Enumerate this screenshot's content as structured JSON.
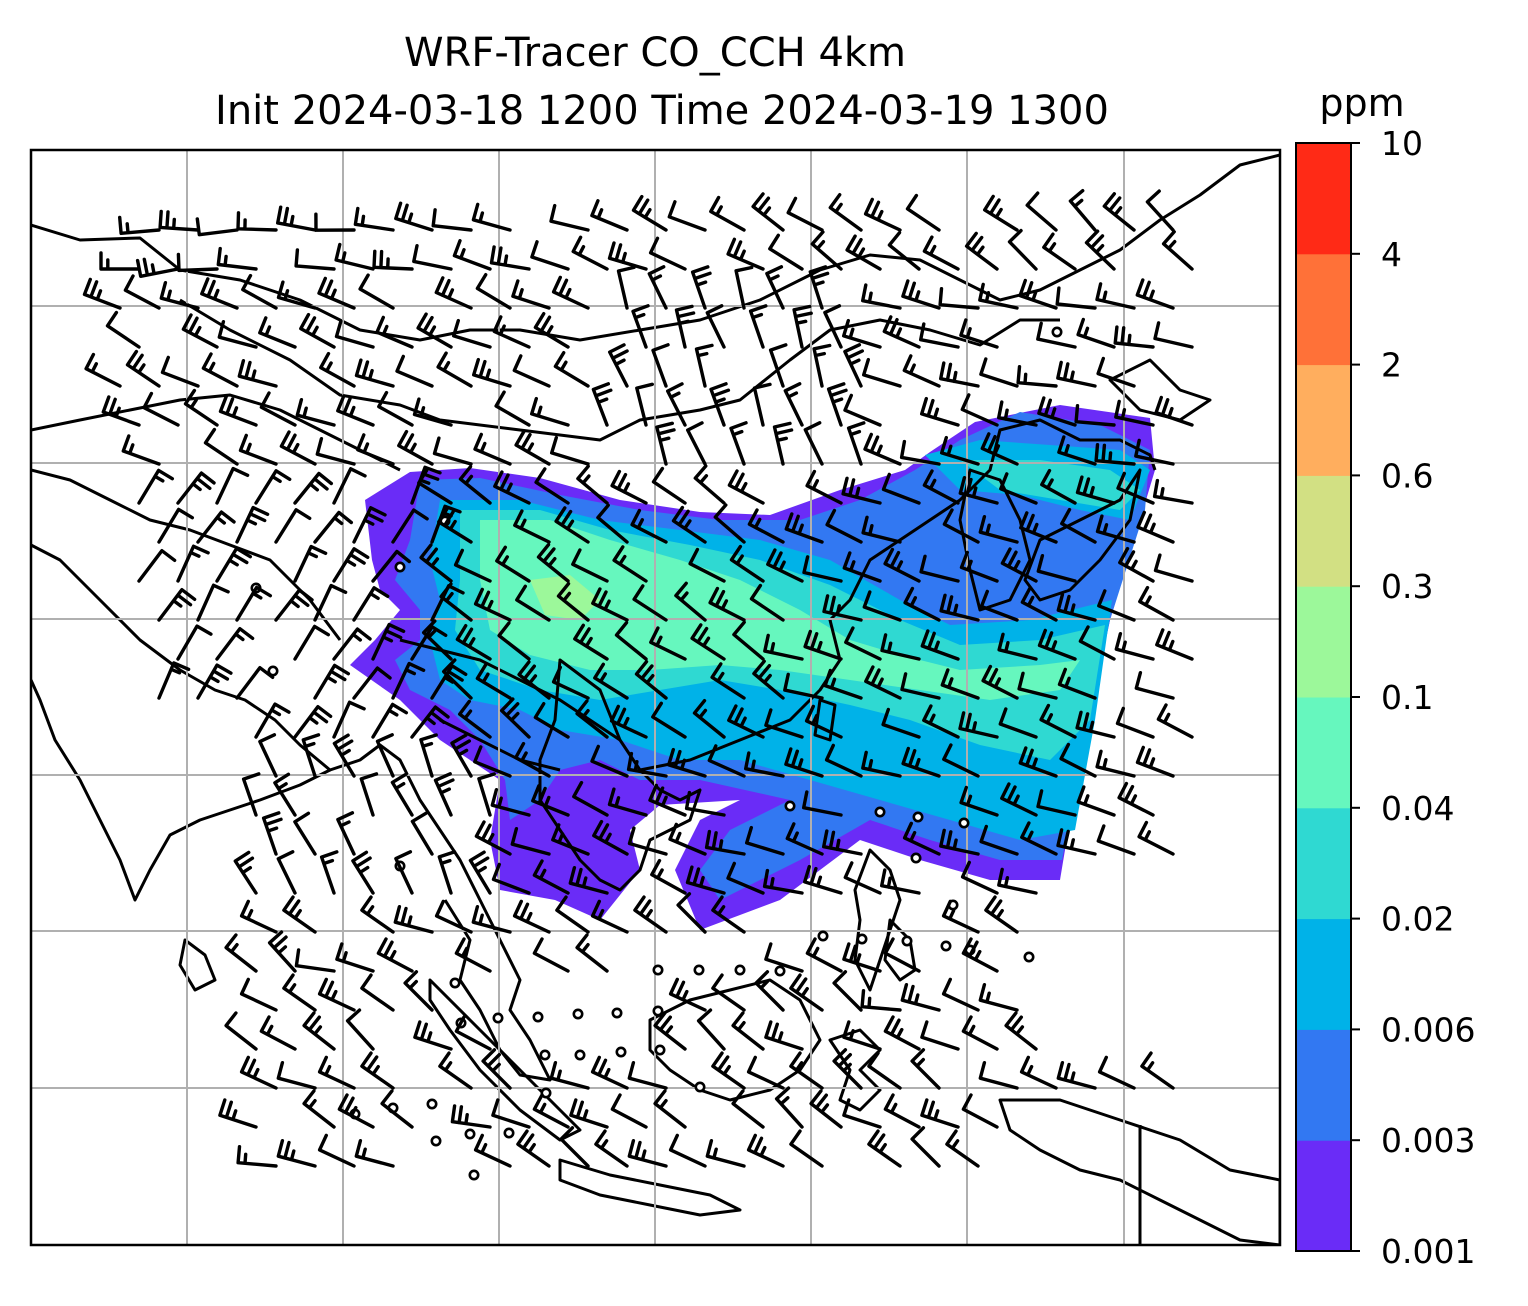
{
  "figure": {
    "title_line1": "WRF-Tracer CO_CCH 4km",
    "title_line2": "Init 2024-03-18 1200 Time 2024-03-19 1300",
    "background": "#ffffff"
  },
  "colorbar": {
    "unit": "ppm",
    "levels": [
      "0.001",
      "0.003",
      "0.006",
      "0.02",
      "0.04",
      "0.1",
      "0.3",
      "0.6",
      "2",
      "4",
      "10"
    ],
    "colors": [
      "#6a2cf7",
      "#3278f2",
      "#00b2e8",
      "#2fd9d2",
      "#66f7be",
      "#9cf89a",
      "#d2e083",
      "#ffae5e",
      "#ff7138",
      "#ff2a16"
    ]
  },
  "map": {
    "gridline_color": "#b0b0b0",
    "coastline_color": "#000000",
    "wind_barb_color": "#000000",
    "calm_marker": "circle",
    "plume_description_levels": [
      "0.001",
      "0.003",
      "0.006",
      "0.02",
      "0.04",
      "0.1"
    ]
  }
}
